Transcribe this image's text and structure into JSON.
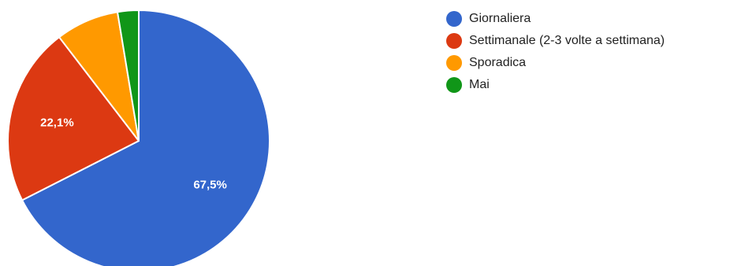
{
  "chart_data": {
    "type": "pie",
    "categories": [
      "Giornaliera",
      "Settimanale (2-3 volte a settimana)",
      "Sporadica",
      "Mai"
    ],
    "values": [
      67.5,
      22.1,
      7.8,
      2.6
    ],
    "data_labels": [
      "67,5%",
      "22,1%",
      "",
      ""
    ],
    "colors": [
      "#3366cc",
      "#dc3912",
      "#ff9900",
      "#109618"
    ],
    "start_angle_deg": 90,
    "direction": "counterclockwise",
    "legend_position": "right"
  }
}
